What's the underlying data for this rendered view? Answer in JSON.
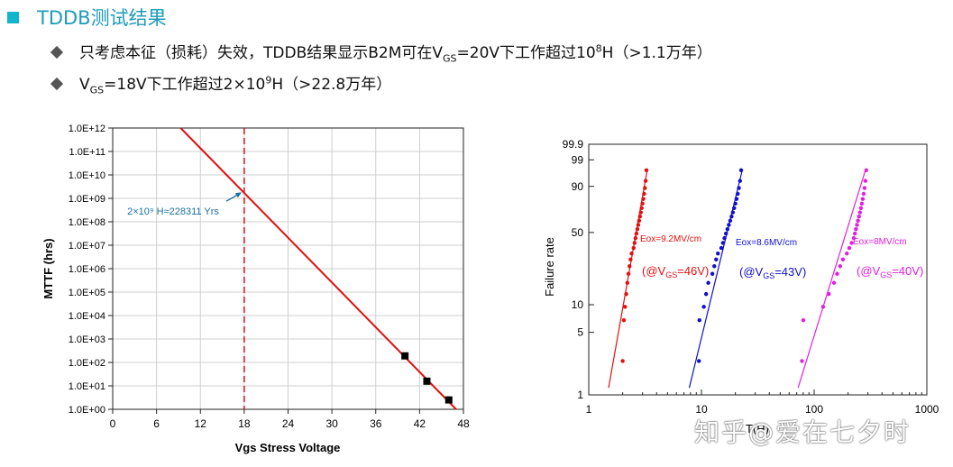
{
  "header": {
    "title": "TDDB测试结果",
    "bullet1": {
      "pre": "只考虑本征（损耗）失效，TDDB结果显示B2M可在V",
      "sub": "GS",
      "mid": "=20V下工作超过10",
      "sup": "8",
      "post": "H（>1.1万年）"
    },
    "bullet2": {
      "pre": "V",
      "sub": "GS",
      "mid": "=18V下工作超过2×10",
      "sup": "9",
      "post": "H（>22.8万年）"
    }
  },
  "watermark": "知乎@爱在七夕时",
  "chart_data": [
    {
      "type": "scatter",
      "xlabel": "Vgs Stress Voltage",
      "ylabel": "MTTF (hrs)",
      "xlim": [
        0,
        48
      ],
      "xticks": [
        "0",
        "6",
        "12",
        "18",
        "24",
        "30",
        "36",
        "42",
        "48"
      ],
      "ylim_log10": [
        0,
        12
      ],
      "yticks": [
        "1.0E+00",
        "1.0E+01",
        "1.0E+02",
        "1.0E+03",
        "1.0E+04",
        "1.0E+05",
        "1.0E+06",
        "1.0E+07",
        "1.0E+08",
        "1.0E+09",
        "1.0E+10",
        "1.0E+11",
        "1.0E+12"
      ],
      "points": [
        {
          "x": 40,
          "log10y": 2.28
        },
        {
          "x": 43,
          "log10y": 1.2
        },
        {
          "x": 46,
          "log10y": 0.4
        }
      ],
      "fit_line": {
        "x1": 9.3,
        "log10y1": 12,
        "x2": 47,
        "log10y2": 0,
        "color": "#dd1111"
      },
      "reference_line": {
        "x": 18,
        "color": "#dd1111",
        "style": "dashed"
      },
      "annotation": {
        "text": "2×10⁹ H≈228311 Yrs",
        "x": 18,
        "log10y": 9.3,
        "color": "#1a6fa0"
      },
      "grid": true
    },
    {
      "type": "scatter",
      "xlabel": "T(H)",
      "ylabel": "Failure rate",
      "xscale": "log",
      "xlim": [
        1,
        1000
      ],
      "xticks": [
        "1",
        "10",
        "100",
        "1000"
      ],
      "yscale": "weibull",
      "ytick_values": [
        1,
        5,
        10,
        50,
        90,
        99,
        99.9
      ],
      "yticks": [
        "1",
        "5",
        "10",
        "50",
        "90",
        "99",
        "99.9"
      ],
      "series": [
        {
          "label1": "Eox=9.2MV/cm",
          "label2_pre": "(@V",
          "label2_sub": "GS",
          "label2_post": "=46V)",
          "color": "#e01010",
          "points": [
            [
              2.0,
              2.4
            ],
            [
              2.05,
              6.8
            ],
            [
              2.1,
              9.5
            ],
            [
              2.15,
              13
            ],
            [
              2.2,
              17
            ],
            [
              2.25,
              21
            ],
            [
              2.3,
              25
            ],
            [
              2.35,
              29
            ],
            [
              2.4,
              33
            ],
            [
              2.5,
              37
            ],
            [
              2.55,
              41
            ],
            [
              2.6,
              45
            ],
            [
              2.65,
              49
            ],
            [
              2.7,
              53
            ],
            [
              2.75,
              57
            ],
            [
              2.8,
              61
            ],
            [
              2.85,
              65
            ],
            [
              2.9,
              69
            ],
            [
              2.95,
              73
            ],
            [
              3.0,
              77
            ],
            [
              3.05,
              81
            ],
            [
              3.1,
              85
            ],
            [
              3.15,
              89
            ],
            [
              3.2,
              93
            ],
            [
              3.25,
              97
            ]
          ],
          "fit": [
            [
              1.5,
              1.2
            ],
            [
              3.3,
              97
            ]
          ]
        },
        {
          "label1": "Eox=8.6MV/cm",
          "label2_pre": "(@V",
          "label2_sub": "GS",
          "label2_post": "=43V)",
          "color": "#1010cc",
          "points": [
            [
              9.5,
              2.4
            ],
            [
              9.6,
              6.8
            ],
            [
              10.5,
              9.5
            ],
            [
              11,
              13
            ],
            [
              11.5,
              17
            ],
            [
              12.5,
              21
            ],
            [
              13,
              25
            ],
            [
              13.5,
              29
            ],
            [
              14,
              33
            ],
            [
              15,
              37
            ],
            [
              15.5,
              41
            ],
            [
              16,
              45
            ],
            [
              16.5,
              49
            ],
            [
              17,
              53
            ],
            [
              17.5,
              57
            ],
            [
              18,
              61
            ],
            [
              18.5,
              65
            ],
            [
              19,
              69
            ],
            [
              19.5,
              73
            ],
            [
              20,
              77
            ],
            [
              20.5,
              81
            ],
            [
              21,
              85
            ],
            [
              21.5,
              89
            ],
            [
              22,
              93
            ],
            [
              22.5,
              97
            ]
          ],
          "fit": [
            [
              7.8,
              1.2
            ],
            [
              23,
              97
            ]
          ]
        },
        {
          "label1": "Eox=8MV/cm",
          "label2_pre": "(@V",
          "label2_sub": "GS",
          "label2_post": "=40V)",
          "color": "#e020e0",
          "points": [
            [
              78,
              2.4
            ],
            [
              80,
              6.8
            ],
            [
              120,
              9.5
            ],
            [
              135,
              13
            ],
            [
              150,
              17
            ],
            [
              160,
              21
            ],
            [
              170,
              25
            ],
            [
              180,
              29
            ],
            [
              195,
              33
            ],
            [
              205,
              37
            ],
            [
              215,
              41
            ],
            [
              225,
              45
            ],
            [
              230,
              49
            ],
            [
              235,
              53
            ],
            [
              240,
              57
            ],
            [
              245,
              61
            ],
            [
              250,
              65
            ],
            [
              255,
              69
            ],
            [
              260,
              73
            ],
            [
              265,
              77
            ],
            [
              270,
              81
            ],
            [
              275,
              85
            ],
            [
              280,
              89
            ],
            [
              285,
              93
            ],
            [
              290,
              97
            ]
          ],
          "fit": [
            [
              72,
              1.2
            ],
            [
              285,
              97
            ]
          ]
        }
      ]
    }
  ]
}
